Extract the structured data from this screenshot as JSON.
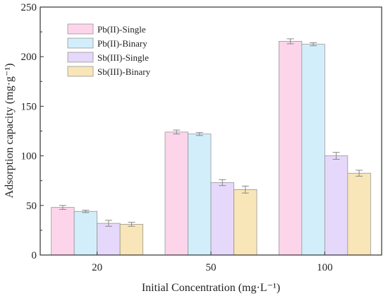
{
  "colors": {
    "Pb(II)-Single": "#fdd5ea",
    "Pb(II)-Binary": "#d3eefb",
    "Sb(III)-Single": "#e6d8fa",
    "Sb(III)-Binary": "#f8e6b8",
    "axis": "#333333",
    "error_bar": "#888888"
  },
  "chart_data": {
    "type": "bar",
    "xlabel": "Initial Concentration (mg·L⁻¹)",
    "ylabel": "Adsorption capacity (mg·g⁻¹)",
    "ylim": [
      0,
      250
    ],
    "yticks": [
      "0",
      "50",
      "100",
      "150",
      "200",
      "250"
    ],
    "categories": [
      "20",
      "50",
      "100"
    ],
    "legend_position": "top-left",
    "grid": false,
    "series": [
      {
        "name": "Pb(II)-Single",
        "values": [
          48,
          124,
          215.5
        ],
        "errors": [
          2,
          2,
          2.5
        ]
      },
      {
        "name": "Pb(II)-Binary",
        "values": [
          44,
          122,
          212.5
        ],
        "errors": [
          1.2,
          1.5,
          1.5
        ]
      },
      {
        "name": "Sb(III)-Single",
        "values": [
          32,
          73,
          100
        ],
        "errors": [
          3,
          3,
          3.5
        ]
      },
      {
        "name": "Sb(III)-Binary",
        "values": [
          31,
          66,
          82.5
        ],
        "errors": [
          2,
          3.5,
          3
        ]
      }
    ]
  }
}
